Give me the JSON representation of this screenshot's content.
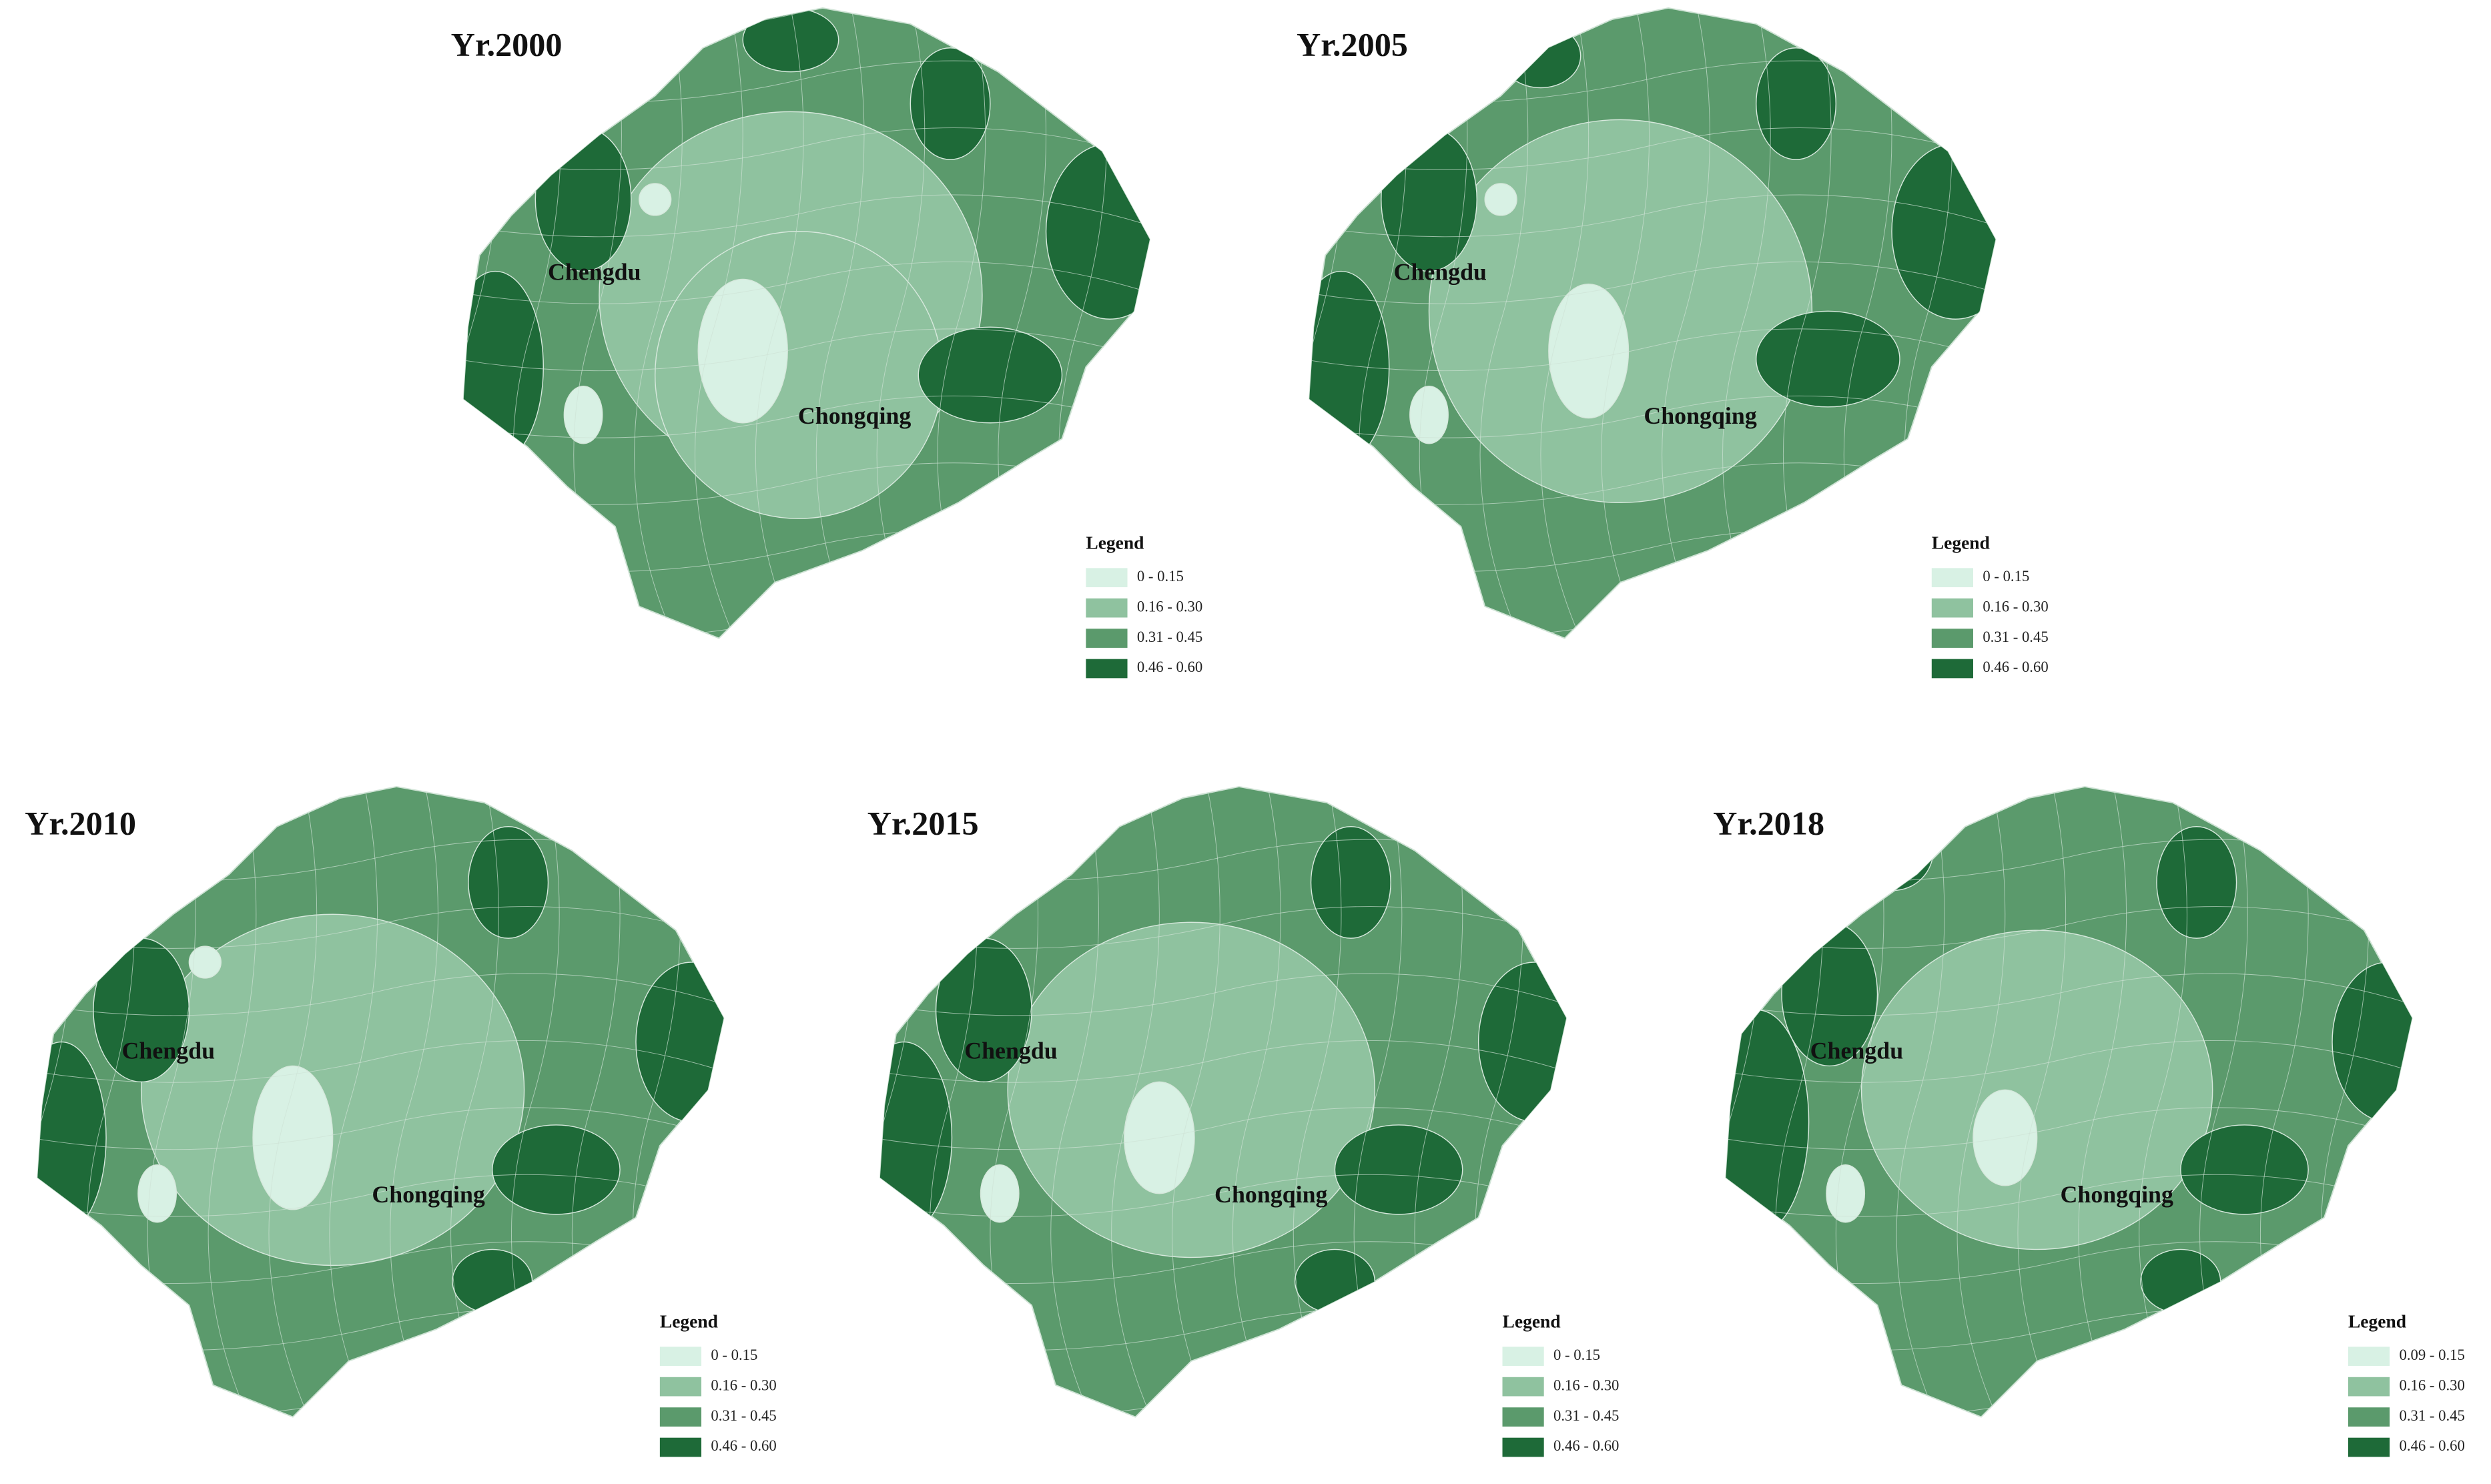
{
  "panels": [
    {
      "title": "Yr.2000",
      "cities": [
        "Chengdu",
        "Chongqing"
      ],
      "legend": {
        "title": "Legend",
        "items": [
          {
            "label": "0 - 0.15",
            "color": "#d8f1e4"
          },
          {
            "label": "0.16 - 0.30",
            "color": "#8fc29f"
          },
          {
            "label": "0.31 - 0.45",
            "color": "#5b9a6c"
          },
          {
            "label": "0.46 - 0.60",
            "color": "#1e6a38"
          }
        ]
      }
    },
    {
      "title": "Yr.2005",
      "cities": [
        "Chengdu",
        "Chongqing"
      ],
      "legend": {
        "title": "Legend",
        "items": [
          {
            "label": "0 - 0.15",
            "color": "#d8f1e4"
          },
          {
            "label": "0.16 - 0.30",
            "color": "#8fc29f"
          },
          {
            "label": "0.31 - 0.45",
            "color": "#5b9a6c"
          },
          {
            "label": "0.46 - 0.60",
            "color": "#1e6a38"
          }
        ]
      }
    },
    {
      "title": "Yr.2010",
      "cities": [
        "Chengdu",
        "Chongqing"
      ],
      "legend": {
        "title": "Legend",
        "items": [
          {
            "label": "0 - 0.15",
            "color": "#d8f1e4"
          },
          {
            "label": "0.16 - 0.30",
            "color": "#8fc29f"
          },
          {
            "label": "0.31 - 0.45",
            "color": "#5b9a6c"
          },
          {
            "label": "0.46 - 0.60",
            "color": "#1e6a38"
          }
        ]
      }
    },
    {
      "title": "Yr.2015",
      "cities": [
        "Chengdu",
        "Chongqing"
      ],
      "legend": {
        "title": "Legend",
        "items": [
          {
            "label": "0 - 0.15",
            "color": "#d8f1e4"
          },
          {
            "label": "0.16 - 0.30",
            "color": "#8fc29f"
          },
          {
            "label": "0.31 - 0.45",
            "color": "#5b9a6c"
          },
          {
            "label": "0.46 - 0.60",
            "color": "#1e6a38"
          }
        ]
      }
    },
    {
      "title": "Yr.2018",
      "cities": [
        "Chengdu",
        "Chongqing"
      ],
      "legend": {
        "title": "Legend",
        "items": [
          {
            "label": "0.09 - 0.15",
            "color": "#d8f1e4"
          },
          {
            "label": "0.16 - 0.30",
            "color": "#8fc29f"
          },
          {
            "label": "0.31 - 0.45",
            "color": "#5b9a6c"
          },
          {
            "label": "0.46 - 0.60",
            "color": "#1e6a38"
          }
        ]
      }
    }
  ]
}
